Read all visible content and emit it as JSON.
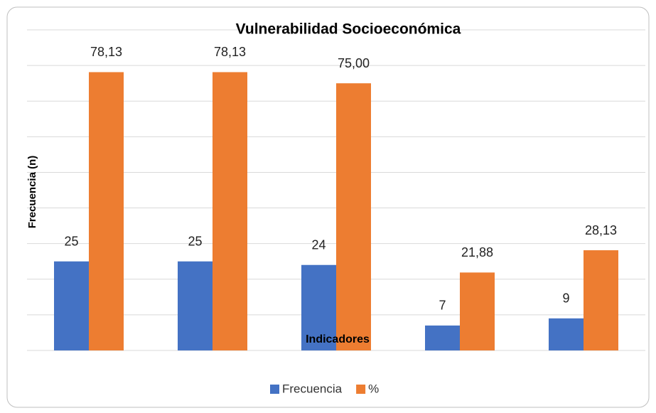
{
  "chart_data": {
    "type": "bar",
    "title": "Vulnerabilidad Socioeconómica",
    "xlabel": "Indicadores",
    "ylabel": "Frecuencia (n)",
    "categories": [
      null,
      null,
      null,
      null,
      null
    ],
    "series": [
      {
        "name": "Frecuencia",
        "color": "#4472c4",
        "values": [
          25,
          25,
          24,
          7,
          9
        ]
      },
      {
        "name": "%",
        "color": "#ed7d31",
        "values": [
          78.13,
          78.13,
          75,
          21.88,
          28.13
        ],
        "value_labels": [
          "78,13",
          "78,13",
          "75,00",
          "21,88",
          "28,13"
        ]
      }
    ],
    "ylim": [
      0,
      90
    ],
    "yticks": [
      0,
      10,
      20,
      30,
      40,
      50,
      60,
      70,
      80,
      90
    ],
    "grid": true,
    "legend": "bottom"
  }
}
